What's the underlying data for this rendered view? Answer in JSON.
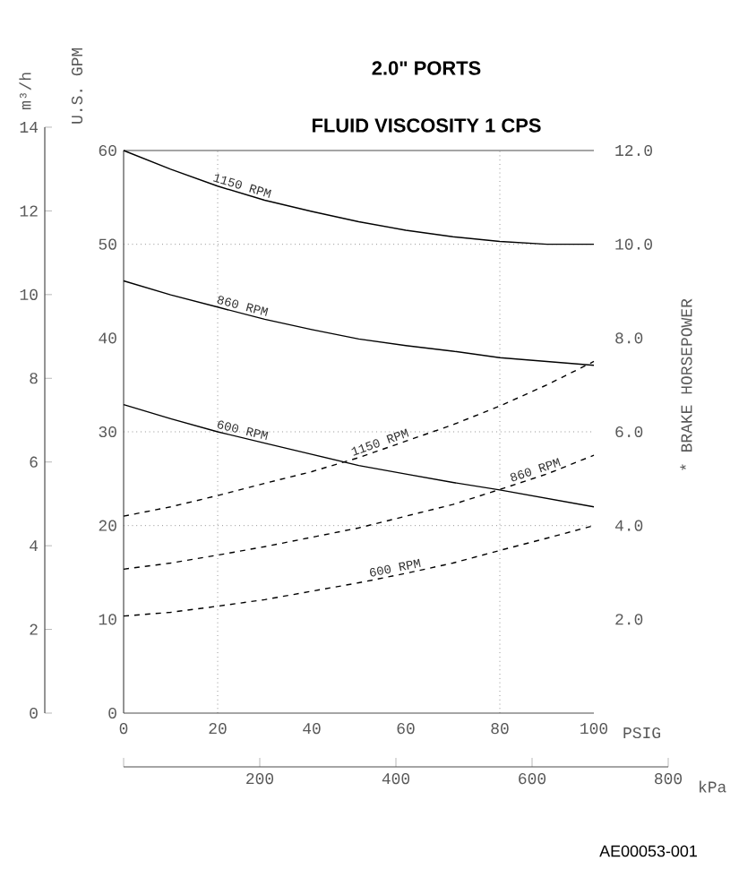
{
  "chart_data": {
    "type": "line",
    "title": "2.0\" PORTS",
    "subtitle": "FLUID VISCOSITY 1 CPS",
    "xlabel": "PSIG",
    "ylabel": "U.S. GPM",
    "y2label": "* BRAKE HORSEPOWER",
    "y3label": "m³/h",
    "x2label": "kPa",
    "x": [
      0,
      10,
      20,
      30,
      40,
      50,
      60,
      70,
      80,
      90,
      100
    ],
    "xlim": [
      0,
      100
    ],
    "xticks": [
      0,
      20,
      40,
      60,
      80,
      100
    ],
    "ylim": [
      0,
      60
    ],
    "yticks": [
      0,
      10,
      20,
      30,
      40,
      50,
      60
    ],
    "y2lim": [
      0,
      12
    ],
    "y2ticks": [
      {
        "value": 2,
        "label": "2.0"
      },
      {
        "value": 4,
        "label": "4.0"
      },
      {
        "value": 6,
        "label": "6.0"
      },
      {
        "value": 8,
        "label": "8.0"
      },
      {
        "value": 10,
        "label": "10.0"
      },
      {
        "value": 12,
        "label": "12.0"
      }
    ],
    "y3lim": [
      0,
      14
    ],
    "y3ticks": [
      0,
      2,
      4,
      6,
      8,
      10,
      12,
      14
    ],
    "x2lim": [
      0,
      800
    ],
    "x2ticks": [
      {
        "value": 0,
        "label": null
      },
      200,
      400,
      600,
      800
    ],
    "series": [
      {
        "name": "1150 RPM",
        "color": "#000000",
        "line_style": "solid",
        "values": [
          60,
          58,
          56.2,
          54.7,
          53.5,
          52.4,
          51.5,
          50.8,
          50.3,
          50.0,
          50.0
        ]
      },
      {
        "name": "860 RPM",
        "color": "#000000",
        "line_style": "solid",
        "values": [
          46.1,
          44.6,
          43.3,
          42.0,
          40.9,
          39.9,
          39.2,
          38.6,
          37.9,
          37.5,
          37.1
        ]
      },
      {
        "name": "600 RPM",
        "color": "#000000",
        "line_style": "solid",
        "values": [
          32.9,
          31.4,
          30.0,
          28.8,
          27.6,
          26.4,
          25.5,
          24.6,
          23.8,
          22.9,
          22.0
        ]
      },
      {
        "name": "1150 RPM",
        "color": "#000000",
        "line_style": "dashed",
        "axis": "y2",
        "values": [
          4.2,
          4.4,
          4.64,
          4.9,
          5.15,
          5.45,
          5.8,
          6.15,
          6.55,
          7.0,
          7.5
        ]
      },
      {
        "name": "860 RPM",
        "color": "#000000",
        "line_style": "dashed",
        "axis": "y2",
        "values": [
          3.07,
          3.2,
          3.37,
          3.55,
          3.75,
          3.95,
          4.2,
          4.45,
          4.77,
          5.1,
          5.5
        ]
      },
      {
        "name": "600 RPM",
        "color": "#000000",
        "line_style": "dashed",
        "axis": "y2",
        "values": [
          2.07,
          2.15,
          2.28,
          2.42,
          2.6,
          2.78,
          2.98,
          3.2,
          3.47,
          3.73,
          4.0
        ]
      }
    ],
    "ref_lines": [
      {
        "axis": "x",
        "value": 20,
        "color": "#555555",
        "line_style": "dotted"
      },
      {
        "axis": "x",
        "value": 80,
        "color": "#555555",
        "line_style": "dotted"
      },
      {
        "axis": "y",
        "value": 20,
        "color": "#555555",
        "line_style": "dotted"
      },
      {
        "axis": "y",
        "value": 30,
        "color": "#555555",
        "line_style": "dotted"
      },
      {
        "axis": "y",
        "value": 50,
        "color": "#555555",
        "line_style": "dotted"
      }
    ],
    "annotations": [
      "AE00053-001"
    ]
  }
}
